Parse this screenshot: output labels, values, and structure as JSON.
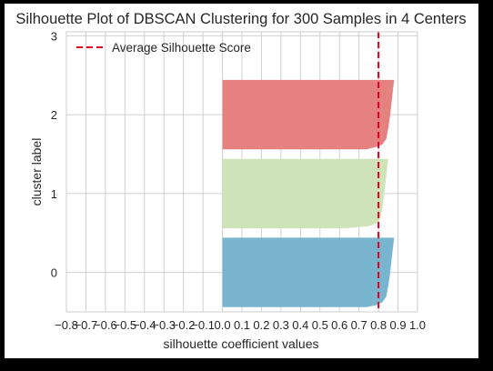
{
  "chart_data": {
    "type": "silhouette",
    "title": "Silhouette Plot of DBSCAN Clustering for 300 Samples in 4 Centers",
    "xlabel": "silhouette coefficient values",
    "ylabel": "cluster label",
    "xlim": [
      -0.8,
      1.0
    ],
    "ylim": [
      -0.5,
      3.05
    ],
    "grid": true,
    "legend_position": "top-left",
    "x_ticks": [
      "−0.8",
      "−0.7",
      "−0.6",
      "−0.5",
      "−0.4",
      "−0.3",
      "−0.2",
      "−0.1",
      "0.0",
      "0.1",
      "0.2",
      "0.3",
      "0.4",
      "0.5",
      "0.6",
      "0.7",
      "0.8",
      "0.9",
      "1.0"
    ],
    "y_ticks": [
      "0",
      "1",
      "2",
      "3"
    ],
    "average_score": {
      "label": "Average Silhouette Score",
      "value": 0.8,
      "color": "#e0001b"
    },
    "clusters": [
      {
        "label": "0",
        "color": "#79b5cf",
        "range": [
          -0.44,
          0.44
        ],
        "profile": [
          [
            0.0,
            0.88
          ],
          [
            0.25,
            0.87
          ],
          [
            0.5,
            0.86
          ],
          [
            0.7,
            0.85
          ],
          [
            0.85,
            0.84
          ],
          [
            0.93,
            0.82
          ],
          [
            0.97,
            0.79
          ],
          [
            1.0,
            0.74
          ]
        ]
      },
      {
        "label": "1",
        "color": "#cfe3b8",
        "range": [
          0.56,
          1.44
        ],
        "profile": [
          [
            0.0,
            0.85
          ],
          [
            0.25,
            0.84
          ],
          [
            0.5,
            0.83
          ],
          [
            0.7,
            0.82
          ],
          [
            0.85,
            0.81
          ],
          [
            0.93,
            0.79
          ],
          [
            0.97,
            0.75
          ],
          [
            1.0,
            0.63
          ]
        ]
      },
      {
        "label": "2",
        "color": "#e58280",
        "range": [
          1.56,
          2.44
        ],
        "profile": [
          [
            0.0,
            0.88
          ],
          [
            0.25,
            0.87
          ],
          [
            0.5,
            0.86
          ],
          [
            0.7,
            0.85
          ],
          [
            0.85,
            0.84
          ],
          [
            0.93,
            0.82
          ],
          [
            0.97,
            0.78
          ],
          [
            1.0,
            0.74
          ]
        ]
      }
    ]
  },
  "colors": {
    "frame_background": "#ffffff",
    "outer_background": "#000000",
    "grid": "#d0d0d0",
    "axis_edge": "#cccccc",
    "text": "#262626"
  }
}
